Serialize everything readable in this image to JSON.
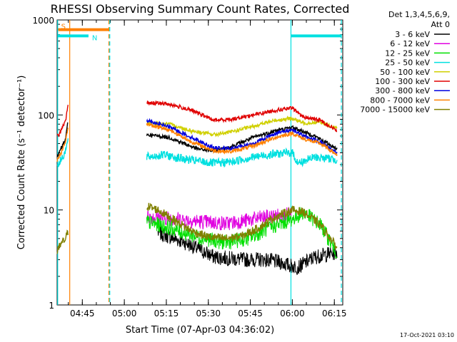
{
  "chart_data": {
    "type": "line",
    "title": "RHESSI Observing Summary Count Rates, Corrected",
    "xlabel": "Start Time (07-Apr-03 04:36:02)",
    "ylabel": "Corrected Count Rate (s⁻¹ detector⁻¹)",
    "yscale": "log",
    "ylim": [
      1,
      1000
    ],
    "xlim_minutes": [
      0,
      102
    ],
    "x_ticks": [
      {
        "m": 9,
        "label": "04:45"
      },
      {
        "m": 24,
        "label": "05:00"
      },
      {
        "m": 39,
        "label": "05:15"
      },
      {
        "m": 54,
        "label": "05:30"
      },
      {
        "m": 69,
        "label": "05:45"
      },
      {
        "m": 84,
        "label": "06:00"
      },
      {
        "m": 99,
        "label": "06:15"
      }
    ],
    "y_ticks": [
      {
        "v": 1,
        "label": "1"
      },
      {
        "v": 10,
        "label": "10"
      },
      {
        "v": 100,
        "label": "100"
      },
      {
        "v": 1000,
        "label": "1000"
      }
    ],
    "legend": {
      "header1": "Det 1,3,4,5,6,9,",
      "header2": "Att 0",
      "position": "right"
    },
    "series": [
      {
        "name": "3 - 6 keV",
        "color": "#000000",
        "segments": [
          [
            [
              0,
              35
            ],
            [
              1,
              42
            ],
            [
              3,
              55
            ],
            [
              4,
              90
            ]
          ],
          [
            [
              32,
              62
            ],
            [
              40,
              58
            ],
            [
              50,
              44
            ],
            [
              56,
              42
            ],
            [
              62,
              46
            ],
            [
              70,
              58
            ],
            [
              78,
              68
            ],
            [
              84,
              74
            ],
            [
              92,
              60
            ],
            [
              100,
              44
            ]
          ]
        ]
      },
      {
        "name": "6 - 12 keV",
        "color": "#e000e0",
        "segments": []
      },
      {
        "name": "12 - 25 keV",
        "color": "#00e000",
        "segments": []
      },
      {
        "name": "25 - 50 keV",
        "color": "#00e0e0",
        "segments": [
          [
            [
              0,
              30
            ],
            [
              1,
              32
            ],
            [
              3,
              42
            ],
            [
              4,
              55
            ]
          ],
          [
            [
              32,
              36
            ],
            [
              38,
              38
            ],
            [
              46,
              34
            ],
            [
              56,
              31
            ],
            [
              62,
              32
            ],
            [
              70,
              36
            ],
            [
              78,
              39
            ],
            [
              84,
              40
            ],
            [
              86,
              31
            ],
            [
              92,
              36
            ],
            [
              100,
              34
            ]
          ]
        ]
      },
      {
        "name": "50 - 100 keV",
        "color": "#d0d000",
        "segments": [
          [
            [
              32,
              82
            ],
            [
              40,
              80
            ],
            [
              48,
              68
            ],
            [
              56,
              62
            ],
            [
              62,
              66
            ],
            [
              70,
              76
            ],
            [
              78,
              88
            ],
            [
              84,
              92
            ],
            [
              88,
              82
            ],
            [
              94,
              84
            ],
            [
              100,
              72
            ]
          ]
        ]
      },
      {
        "name": "100 - 300 keV",
        "color": "#e00000",
        "segments": [
          [
            [
              0,
              60
            ],
            [
              1,
              65
            ],
            [
              3,
              85
            ],
            [
              4,
              130
            ]
          ],
          [
            [
              32,
              135
            ],
            [
              40,
              130
            ],
            [
              48,
              112
            ],
            [
              56,
              88
            ],
            [
              62,
              90
            ],
            [
              70,
              100
            ],
            [
              78,
              112
            ],
            [
              84,
              118
            ],
            [
              88,
              95
            ],
            [
              94,
              88
            ],
            [
              100,
              68
            ]
          ]
        ]
      },
      {
        "name": "300 - 800 keV",
        "color": "#0000e0",
        "segments": [
          [
            [
              32,
              88
            ],
            [
              40,
              75
            ],
            [
              48,
              58
            ],
            [
              56,
              45
            ],
            [
              62,
              44
            ],
            [
              70,
              50
            ],
            [
              78,
              64
            ],
            [
              84,
              70
            ],
            [
              88,
              60
            ],
            [
              94,
              52
            ],
            [
              100,
              40
            ]
          ]
        ]
      },
      {
        "name": "800 - 7000 keV",
        "color": "#ff8000",
        "segments": [
          [
            [
              0,
              33
            ],
            [
              1,
              38
            ],
            [
              3,
              50
            ],
            [
              4,
              80
            ]
          ],
          [
            [
              32,
              80
            ],
            [
              40,
              70
            ],
            [
              48,
              52
            ],
            [
              56,
              42
            ],
            [
              62,
              41
            ],
            [
              70,
              47
            ],
            [
              78,
              58
            ],
            [
              84,
              64
            ],
            [
              88,
              56
            ],
            [
              94,
              50
            ],
            [
              100,
              38
            ]
          ]
        ]
      },
      {
        "name": "7000 - 15000 keV",
        "color": "#808000",
        "segments": [
          [
            [
              0,
              3.5
            ],
            [
              1,
              4.2
            ],
            [
              3,
              5
            ],
            [
              4,
              6
            ]
          ],
          [
            [
              32,
              11
            ],
            [
              36,
              10
            ],
            [
              42,
              7.8
            ],
            [
              48,
              6
            ],
            [
              54,
              5.2
            ],
            [
              60,
              5
            ],
            [
              66,
              5.3
            ],
            [
              72,
              6.5
            ],
            [
              78,
              8.5
            ],
            [
              84,
              10
            ],
            [
              88,
              9.5
            ],
            [
              94,
              7
            ],
            [
              100,
              4
            ]
          ]
        ]
      }
    ],
    "low_energy_bands": {
      "3 - 6 keV (lower)": {
        "color": "#000000",
        "points": [
          [
            36,
            5.8
          ],
          [
            46,
            4.5
          ],
          [
            56,
            3.2
          ],
          [
            66,
            3.0
          ],
          [
            74,
            3.0
          ],
          [
            80,
            2.8
          ],
          [
            83,
            2.6
          ],
          [
            86,
            2.5
          ],
          [
            92,
            3.2
          ],
          [
            100,
            3.6
          ]
        ]
      },
      "6 - 12 keV": {
        "color": "#e000e0",
        "points": [
          [
            32,
            8.5
          ],
          [
            40,
            8.2
          ],
          [
            50,
            7.6
          ],
          [
            60,
            7.2
          ],
          [
            66,
            7.6
          ],
          [
            72,
            8.2
          ],
          [
            80,
            8.8
          ],
          [
            84,
            9
          ]
        ]
      },
      "12 - 25 keV": {
        "color": "#00e000",
        "points": [
          [
            32,
            7.5
          ],
          [
            40,
            6.5
          ],
          [
            50,
            5.2
          ],
          [
            60,
            4.5
          ],
          [
            68,
            5.0
          ],
          [
            76,
            6.5
          ],
          [
            84,
            8
          ],
          [
            88,
            9.5
          ],
          [
            94,
            7
          ],
          [
            100,
            3.5
          ]
        ]
      }
    },
    "annotations": [
      {
        "label": "S",
        "color": "#ff8000",
        "x_start": 0.4,
        "x_end": 18.5,
        "y": 790
      },
      {
        "label": "N",
        "color": "#00e0e0",
        "x_start": 0.2,
        "x_end": 11.2,
        "y": 680
      },
      {
        "label": "",
        "color": "#00e0e0",
        "x_start": 83.5,
        "x_end": 101.5,
        "y": 680
      }
    ],
    "vertical_lines": [
      {
        "m": 0.2,
        "color": "#00e0e0",
        "style": "solid"
      },
      {
        "m": 4.5,
        "color": "#ff8000",
        "style": "solid"
      },
      {
        "m": 18.5,
        "color": "#ff8000",
        "style": "dashed"
      },
      {
        "m": 18.8,
        "color": "#00e0e0",
        "style": "dashed"
      },
      {
        "m": 83.5,
        "color": "#00e0e0",
        "style": "solid"
      },
      {
        "m": 101.5,
        "color": "#00e0e0",
        "style": "dashed"
      }
    ]
  },
  "footer": {
    "timestamp": "17-Oct-2021 03:10"
  }
}
